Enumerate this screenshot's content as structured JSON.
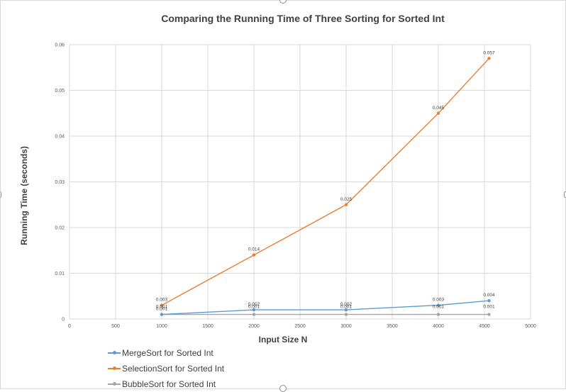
{
  "chart_data": {
    "type": "line",
    "title": "Comparing the Running Time of Three Sorting for Sorted Int",
    "xlabel": "Input Size N",
    "ylabel": "Running Time (seconds)",
    "xlim": [
      0,
      5000
    ],
    "ylim": [
      0,
      0.06
    ],
    "x_ticks": [
      "0",
      "500",
      "1000",
      "1500",
      "2000",
      "2500",
      "3000",
      "3500",
      "4000",
      "4500",
      "5000"
    ],
    "y_ticks": [
      "0",
      "0.01",
      "0.02",
      "0.03",
      "0.04",
      "0.05",
      "0.06"
    ],
    "grid": true,
    "legend_position": "bottom-left",
    "series": [
      {
        "name": "MergeSort for Sorted Int",
        "color": "#5b9bd5",
        "x": [
          1000,
          2000,
          3000,
          4000,
          4550
        ],
        "y": [
          0.001,
          0.002,
          0.002,
          0.003,
          0.004
        ],
        "labels": [
          "0.001",
          "0.002",
          "0.002",
          "0.003",
          "0.004"
        ]
      },
      {
        "name": "SelectionSort for Sorted Int",
        "color": "#ed7d31",
        "x": [
          1000,
          2000,
          3000,
          4000,
          4550
        ],
        "y": [
          0.003,
          0.014,
          0.025,
          0.045,
          0.057
        ],
        "labels": [
          "0.003",
          "0.014",
          "0.025",
          "0.045",
          "0.057"
        ]
      },
      {
        "name": "BubbleSort for Sorted Int",
        "color": "#a5a5a5",
        "x": [
          1000,
          2000,
          3000,
          4000,
          4550
        ],
        "y": [
          0.001,
          0.001,
          0.001,
          0.001,
          0.001
        ],
        "labels": [
          "0.001",
          "0.001",
          "0.001",
          "0.001",
          "0.001"
        ]
      }
    ]
  }
}
